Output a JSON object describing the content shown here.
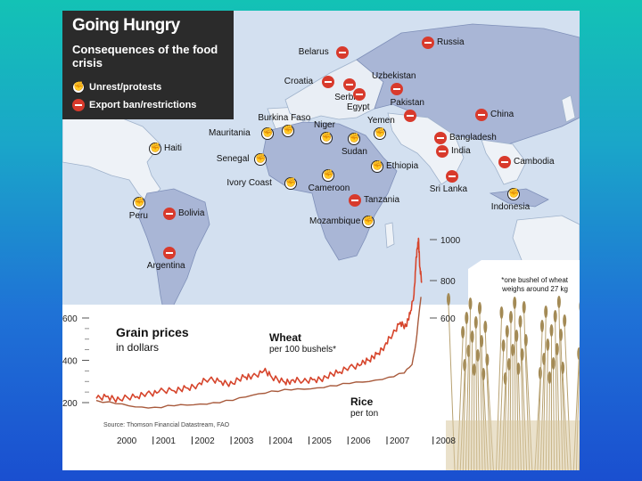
{
  "title": "Going Hungry",
  "subtitle": "Consequences of the food crisis",
  "legend": {
    "unrest": "Unrest/protests",
    "ban": "Export ban/restrictions"
  },
  "map_markers": [
    {
      "name": "Russia",
      "type": "ban"
    },
    {
      "name": "Belarus",
      "type": "ban"
    },
    {
      "name": "Uzbekistan",
      "type": "ban"
    },
    {
      "name": "Croatia",
      "type": "ban"
    },
    {
      "name": "Serbia",
      "type": "ban"
    },
    {
      "name": "Egypt",
      "type": "ban"
    },
    {
      "name": "Pakistan",
      "type": "ban"
    },
    {
      "name": "China",
      "type": "ban"
    },
    {
      "name": "Mauritania",
      "type": "unrest"
    },
    {
      "name": "Burkina Faso",
      "type": "unrest"
    },
    {
      "name": "Yemen",
      "type": "unrest"
    },
    {
      "name": "Niger",
      "type": "unrest"
    },
    {
      "name": "Bangladesh",
      "type": "ban"
    },
    {
      "name": "Haiti",
      "type": "unrest"
    },
    {
      "name": "Senegal",
      "type": "unrest"
    },
    {
      "name": "Sudan",
      "type": "unrest"
    },
    {
      "name": "India",
      "type": "ban"
    },
    {
      "name": "Cambodia",
      "type": "ban"
    },
    {
      "name": "Ethiopia",
      "type": "unrest"
    },
    {
      "name": "Ivory Coast",
      "type": "unrest"
    },
    {
      "name": "Cameroon",
      "type": "unrest"
    },
    {
      "name": "Sri Lanka",
      "type": "ban"
    },
    {
      "name": "Tanzania",
      "type": "ban"
    },
    {
      "name": "Indonesia",
      "type": "unrest"
    },
    {
      "name": "Peru",
      "type": "unrest"
    },
    {
      "name": "Bolivia",
      "type": "ban"
    },
    {
      "name": "Mozambique",
      "type": "unrest"
    },
    {
      "name": "Argentina",
      "type": "ban"
    }
  ],
  "chart_data": {
    "type": "line",
    "title": "Grain prices",
    "subtitle": "in dollars",
    "source": "Source: Thomson Financial Datastream, FAO",
    "x_labels": [
      "2000",
      "2001",
      "2002",
      "2003",
      "2004",
      "2005",
      "2006",
      "2007",
      "2008"
    ],
    "xlim": [
      2000,
      2008.35
    ],
    "left_axis": {
      "ticks": [
        200,
        400,
        600
      ],
      "labels": [
        "200",
        "400",
        "600"
      ],
      "range": [
        150,
        650
      ]
    },
    "right_axis": {
      "ticks": [
        600,
        800,
        1000
      ],
      "labels": [
        "600",
        "800",
        "1000"
      ]
    },
    "note": "*one bushel of wheat weighs around 27 kg",
    "series": [
      {
        "name": "Wheat",
        "unit": "per 100 bushels*",
        "color": "#d6452c",
        "points": [
          [
            2000.0,
            220
          ],
          [
            2000.3,
            230
          ],
          [
            2000.6,
            215
          ],
          [
            2001.0,
            225
          ],
          [
            2001.3,
            245
          ],
          [
            2001.6,
            250
          ],
          [
            2002.0,
            255
          ],
          [
            2002.3,
            270
          ],
          [
            2002.6,
            285
          ],
          [
            2002.9,
            310
          ],
          [
            2003.2,
            300
          ],
          [
            2003.5,
            290
          ],
          [
            2003.8,
            320
          ],
          [
            2004.0,
            325
          ],
          [
            2004.3,
            350
          ],
          [
            2004.5,
            320
          ],
          [
            2004.8,
            300
          ],
          [
            2005.0,
            305
          ],
          [
            2005.3,
            300
          ],
          [
            2005.6,
            310
          ],
          [
            2005.9,
            320
          ],
          [
            2006.2,
            340
          ],
          [
            2006.5,
            370
          ],
          [
            2006.8,
            380
          ],
          [
            2007.0,
            400
          ],
          [
            2007.2,
            430
          ],
          [
            2007.4,
            470
          ],
          [
            2007.6,
            520
          ],
          [
            2007.8,
            580
          ],
          [
            2007.95,
            560
          ],
          [
            2008.05,
            620
          ],
          [
            2008.15,
            720
          ],
          [
            2008.2,
            880
          ],
          [
            2008.24,
            960
          ],
          [
            2008.27,
            1000
          ],
          [
            2008.3,
            860
          ],
          [
            2008.35,
            780
          ]
        ]
      },
      {
        "name": "Rice",
        "unit": "per ton",
        "color": "#a85a3c",
        "points": [
          [
            2000.0,
            210
          ],
          [
            2000.5,
            195
          ],
          [
            2001.0,
            180
          ],
          [
            2001.5,
            178
          ],
          [
            2002.0,
            185
          ],
          [
            2002.5,
            190
          ],
          [
            2003.0,
            200
          ],
          [
            2003.5,
            210
          ],
          [
            2004.0,
            235
          ],
          [
            2004.5,
            255
          ],
          [
            2005.0,
            260
          ],
          [
            2005.5,
            265
          ],
          [
            2006.0,
            280
          ],
          [
            2006.5,
            290
          ],
          [
            2007.0,
            300
          ],
          [
            2007.5,
            320
          ],
          [
            2007.9,
            340
          ],
          [
            2008.1,
            380
          ],
          [
            2008.2,
            480
          ],
          [
            2008.28,
            620
          ],
          [
            2008.33,
            700
          ]
        ]
      }
    ]
  }
}
